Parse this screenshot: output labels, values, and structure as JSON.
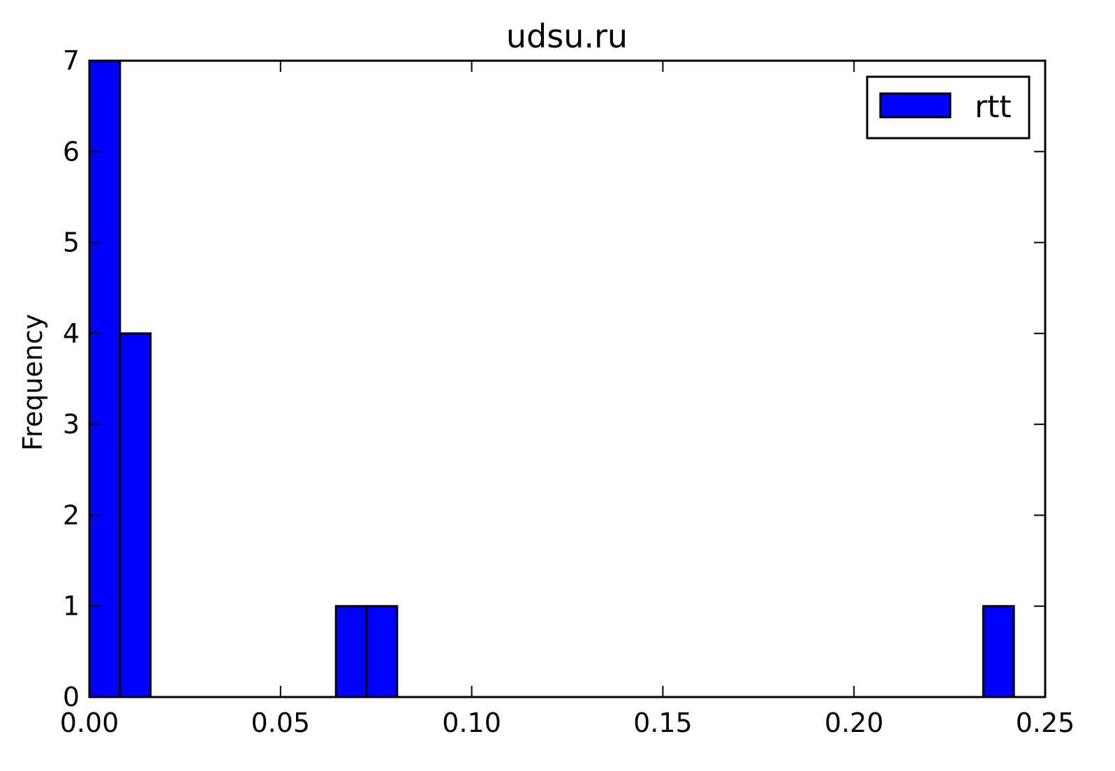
{
  "chart_data": {
    "type": "bar",
    "title": "udsu.ru",
    "xlabel": "",
    "ylabel": "Frequency",
    "xlim": [
      0.0,
      0.25
    ],
    "ylim": [
      0,
      7
    ],
    "x_ticks": [
      "0.00",
      "0.05",
      "0.10",
      "0.15",
      "0.20",
      "0.25"
    ],
    "y_ticks": [
      "0",
      "1",
      "2",
      "3",
      "4",
      "5",
      "6",
      "7"
    ],
    "grid": false,
    "legend": {
      "placement": "top-right",
      "entries": [
        "rtt"
      ]
    },
    "series": [
      {
        "name": "rtt",
        "color": "#0000ff",
        "bins": [
          {
            "start": 0.0,
            "end": 0.008,
            "count": 7
          },
          {
            "start": 0.008,
            "end": 0.016,
            "count": 4
          },
          {
            "start": 0.0645,
            "end": 0.0725,
            "count": 1
          },
          {
            "start": 0.0725,
            "end": 0.0805,
            "count": 1
          },
          {
            "start": 0.2338,
            "end": 0.2418,
            "count": 1
          }
        ]
      }
    ]
  }
}
